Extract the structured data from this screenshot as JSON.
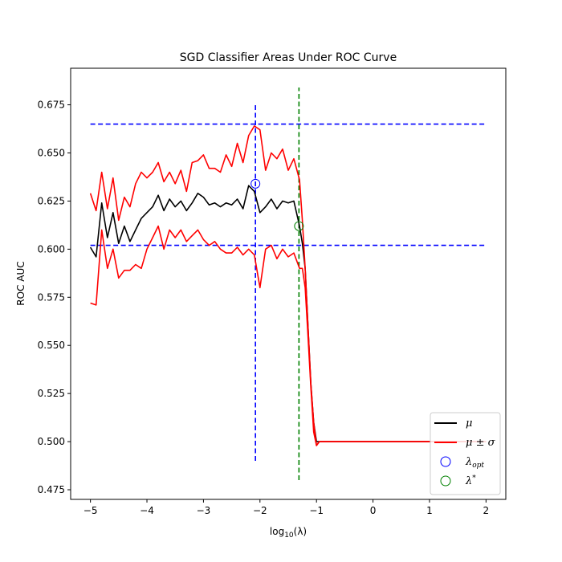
{
  "chart_data": {
    "type": "line",
    "title": "SGD Classifier Areas Under ROC Curve",
    "xlabel": "log",
    "xlabel_sub": "10",
    "xlabel_arg": "(λ)",
    "ylabel": "ROC AUC",
    "xlim": [
      -5.35,
      2.35
    ],
    "ylim": [
      0.47,
      0.694
    ],
    "xticks": [
      -5,
      -4,
      -3,
      -2,
      -1,
      0,
      1,
      2
    ],
    "xtick_labels": [
      "−5",
      "−4",
      "−3",
      "−2",
      "−1",
      "0",
      "1",
      "2"
    ],
    "yticks": [
      0.475,
      0.5,
      0.525,
      0.55,
      0.575,
      0.6,
      0.625,
      0.65,
      0.675
    ],
    "ytick_labels": [
      "0.475",
      "0.500",
      "0.525",
      "0.550",
      "0.575",
      "0.600",
      "0.625",
      "0.650",
      "0.675"
    ],
    "grid": false,
    "legend_position": "lower-right",
    "legend": [
      {
        "label": "μ",
        "kind": "line",
        "color": "#000000"
      },
      {
        "label": "μ ± σ",
        "kind": "line",
        "color": "#ff0000"
      },
      {
        "label": "λopt",
        "label_main": "λ",
        "label_sub": "opt",
        "kind": "circle",
        "color": "#0000ff"
      },
      {
        "label": "λ*",
        "label_main": "λ",
        "label_sup": "*",
        "kind": "circle",
        "color": "#008000"
      }
    ],
    "series": [
      {
        "name": "μ",
        "color": "#000000",
        "x": [
          -5.0,
          -4.9,
          -4.8,
          -4.7,
          -4.6,
          -4.5,
          -4.4,
          -4.3,
          -4.2,
          -4.1,
          -4.0,
          -3.9,
          -3.8,
          -3.7,
          -3.6,
          -3.5,
          -3.4,
          -3.3,
          -3.2,
          -3.1,
          -3.0,
          -2.9,
          -2.8,
          -2.7,
          -2.6,
          -2.5,
          -2.4,
          -2.3,
          -2.2,
          -2.1,
          -2.0,
          -1.9,
          -1.8,
          -1.7,
          -1.6,
          -1.5,
          -1.4,
          -1.3,
          -1.25,
          -1.2,
          -1.15,
          -1.1,
          -1.05,
          -1.0,
          -0.95,
          0.0,
          1.0,
          2.0
        ],
        "y": [
          0.601,
          0.596,
          0.624,
          0.606,
          0.619,
          0.603,
          0.612,
          0.604,
          0.61,
          0.616,
          0.619,
          0.622,
          0.628,
          0.62,
          0.626,
          0.622,
          0.625,
          0.62,
          0.624,
          0.629,
          0.627,
          0.623,
          0.624,
          0.622,
          0.624,
          0.623,
          0.626,
          0.621,
          0.633,
          0.63,
          0.619,
          0.622,
          0.626,
          0.621,
          0.625,
          0.624,
          0.625,
          0.612,
          0.603,
          0.59,
          0.56,
          0.53,
          0.51,
          0.5,
          0.5,
          0.5,
          0.5,
          0.5
        ]
      },
      {
        "name": "μ + σ",
        "color": "#ff0000",
        "x": [
          -5.0,
          -4.9,
          -4.8,
          -4.7,
          -4.6,
          -4.5,
          -4.4,
          -4.3,
          -4.2,
          -4.1,
          -4.0,
          -3.9,
          -3.8,
          -3.7,
          -3.6,
          -3.5,
          -3.4,
          -3.3,
          -3.2,
          -3.1,
          -3.0,
          -2.9,
          -2.8,
          -2.7,
          -2.6,
          -2.5,
          -2.4,
          -2.3,
          -2.2,
          -2.1,
          -2.0,
          -1.9,
          -1.8,
          -1.7,
          -1.6,
          -1.5,
          -1.4,
          -1.3,
          -1.25,
          -1.2,
          -1.15,
          -1.1,
          -1.05,
          -1.0,
          -0.95,
          0.0,
          1.0,
          2.0
        ],
        "y": [
          0.629,
          0.62,
          0.64,
          0.621,
          0.637,
          0.615,
          0.627,
          0.622,
          0.634,
          0.64,
          0.637,
          0.64,
          0.645,
          0.635,
          0.64,
          0.634,
          0.641,
          0.63,
          0.645,
          0.646,
          0.649,
          0.642,
          0.642,
          0.64,
          0.649,
          0.643,
          0.655,
          0.645,
          0.659,
          0.664,
          0.662,
          0.641,
          0.65,
          0.647,
          0.652,
          0.641,
          0.647,
          0.636,
          0.615,
          0.59,
          0.56,
          0.53,
          0.51,
          0.498,
          0.5,
          0.5,
          0.5,
          0.5
        ]
      },
      {
        "name": "μ − σ",
        "color": "#ff0000",
        "x": [
          -5.0,
          -4.9,
          -4.8,
          -4.7,
          -4.6,
          -4.5,
          -4.4,
          -4.3,
          -4.2,
          -4.1,
          -4.0,
          -3.9,
          -3.8,
          -3.7,
          -3.6,
          -3.5,
          -3.4,
          -3.3,
          -3.2,
          -3.1,
          -3.0,
          -2.9,
          -2.8,
          -2.7,
          -2.6,
          -2.5,
          -2.4,
          -2.3,
          -2.2,
          -2.1,
          -2.0,
          -1.9,
          -1.8,
          -1.7,
          -1.6,
          -1.5,
          -1.4,
          -1.3,
          -1.25,
          -1.2,
          -1.15,
          -1.1,
          -1.05,
          -1.0,
          -0.95,
          0.0,
          1.0,
          2.0
        ],
        "y": [
          0.572,
          0.571,
          0.61,
          0.59,
          0.6,
          0.585,
          0.589,
          0.589,
          0.592,
          0.59,
          0.6,
          0.606,
          0.612,
          0.6,
          0.61,
          0.606,
          0.61,
          0.604,
          0.607,
          0.61,
          0.605,
          0.602,
          0.604,
          0.6,
          0.598,
          0.598,
          0.601,
          0.597,
          0.6,
          0.597,
          0.58,
          0.6,
          0.602,
          0.595,
          0.6,
          0.596,
          0.598,
          0.59,
          0.59,
          0.58,
          0.555,
          0.528,
          0.505,
          0.498,
          0.5,
          0.5,
          0.5,
          0.5
        ]
      }
    ],
    "reference_lines": [
      {
        "kind": "horizontal",
        "y": 0.665,
        "x_range": [
          -5.0,
          2.0
        ],
        "color": "#0000ff",
        "style": "dashed"
      },
      {
        "kind": "horizontal",
        "y": 0.602,
        "x_range": [
          -5.0,
          2.0
        ],
        "color": "#0000ff",
        "style": "dashed"
      },
      {
        "kind": "vertical",
        "x": -2.08,
        "y_range": [
          0.49,
          0.675
        ],
        "color": "#0000ff",
        "style": "dashed"
      },
      {
        "kind": "vertical",
        "x": -1.31,
        "y_range": [
          0.48,
          0.684
        ],
        "color": "#008000",
        "style": "dashed"
      }
    ],
    "markers": [
      {
        "name": "λopt",
        "x": -2.08,
        "y": 0.634,
        "color": "#0000ff"
      },
      {
        "name": "λ*",
        "x": -1.31,
        "y": 0.612,
        "color": "#008000"
      }
    ]
  }
}
